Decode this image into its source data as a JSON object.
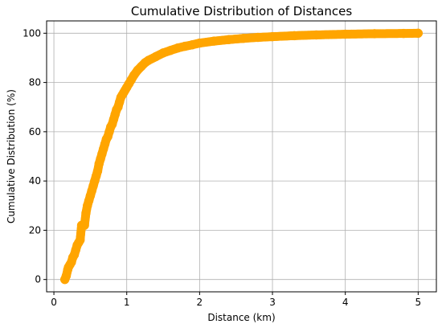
{
  "chart_data": {
    "type": "scatter",
    "title": "Cumulative Distribution of Distances",
    "xlabel": "Distance (km)",
    "ylabel": "Cumulative Distribution (%)",
    "xlim": [
      -0.1,
      5.25
    ],
    "ylim": [
      -5,
      105
    ],
    "xticks": [
      0,
      1,
      2,
      3,
      4,
      5
    ],
    "xtick_labels": [
      "0",
      "1",
      "2",
      "3",
      "4",
      "5"
    ],
    "yticks": [
      0,
      20,
      40,
      60,
      80,
      100
    ],
    "ytick_labels": [
      "0",
      "20",
      "40",
      "60",
      "80",
      "100"
    ],
    "grid": true,
    "marker_color": "#FFA500",
    "series": [
      {
        "x": [
          0.15,
          0.17,
          0.19,
          0.2,
          0.22,
          0.24,
          0.26,
          0.28,
          0.3,
          0.32,
          0.34,
          0.36,
          0.38,
          0.4,
          0.42,
          0.44,
          0.46,
          0.48,
          0.5,
          0.52,
          0.54,
          0.56,
          0.58,
          0.6,
          0.62,
          0.64,
          0.66,
          0.68,
          0.7,
          0.72,
          0.74,
          0.76,
          0.78,
          0.8,
          0.82,
          0.84,
          0.86,
          0.88,
          0.9,
          0.92,
          0.94,
          0.96,
          0.98,
          1.0,
          1.03,
          1.06,
          1.1,
          1.15,
          1.2,
          1.25,
          1.3,
          1.4,
          1.5,
          1.6,
          1.7,
          1.8,
          1.9,
          2.0,
          2.2,
          2.4,
          2.6,
          2.8,
          3.0,
          3.3,
          3.6,
          4.0,
          4.4,
          4.8,
          5.0
        ],
        "y": [
          0,
          1.5,
          4,
          5,
          6,
          7,
          9,
          10,
          12,
          14,
          15,
          16,
          22,
          22,
          22,
          27,
          30,
          32,
          34,
          36,
          38,
          40,
          42,
          44,
          47,
          49,
          51,
          53,
          55,
          57,
          58,
          60,
          62,
          63,
          65,
          67,
          69,
          70,
          72,
          74,
          75,
          76,
          77,
          78,
          79.5,
          81,
          83,
          85,
          86.5,
          88,
          89,
          90.5,
          92,
          93,
          94,
          94.7,
          95.3,
          96,
          96.8,
          97.4,
          97.9,
          98.3,
          98.6,
          99,
          99.3,
          99.6,
          99.8,
          99.9,
          100
        ]
      }
    ]
  }
}
